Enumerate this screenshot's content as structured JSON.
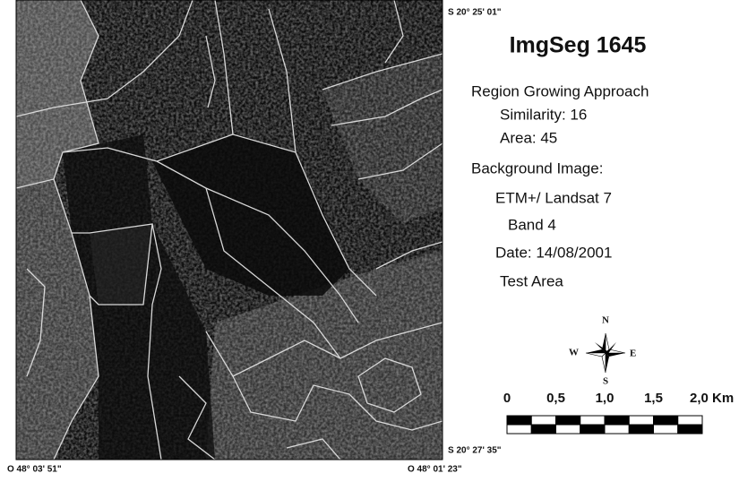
{
  "map": {
    "title": "ImgSeg 1645",
    "coordinates": {
      "top_right": "S 20° 25' 01\"",
      "bottom_right": "S 20° 27' 35\"",
      "bottom_left": "O 48° 03' 51\"",
      "bottom_center": "O 48° 01' 23\""
    }
  },
  "legend": {
    "method": "Region Growing Approach",
    "similarity": "Similarity: 16",
    "area": "Area: 45",
    "background_heading": "Background Image:",
    "sensor": "ETM+/ Landsat 7",
    "band": "Band 4",
    "date": "Date: 14/08/2001",
    "test_area": "Test Area"
  },
  "compass": {
    "n": "N",
    "s": "S",
    "w": "W",
    "e": "E"
  },
  "scale_bar": {
    "labels": [
      "0",
      "0,5",
      "1,0",
      "1,5",
      "2,0 Km"
    ]
  }
}
